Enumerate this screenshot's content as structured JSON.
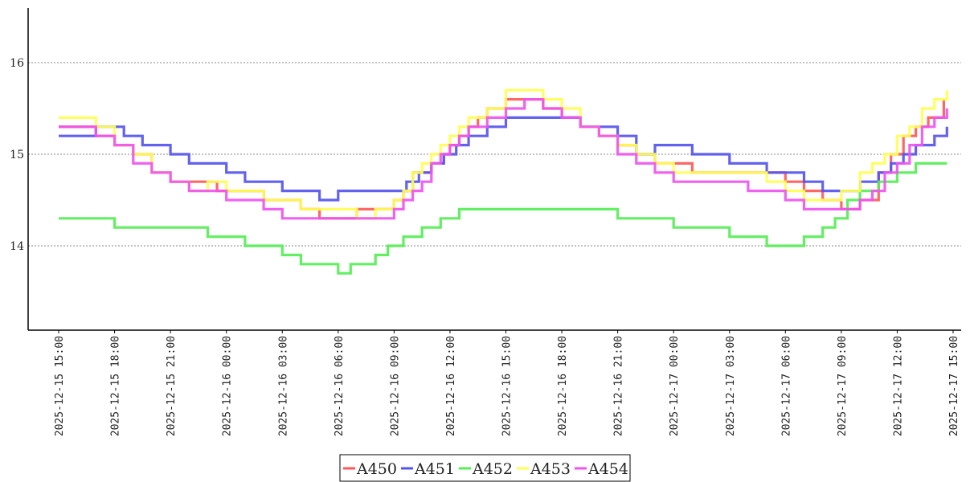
{
  "chart_data": {
    "type": "line",
    "title": "",
    "xlabel": "",
    "ylabel": "",
    "x_ticks": [
      "2025-12-15 15:00",
      "2025-12-15 18:00",
      "2025-12-15 21:00",
      "2025-12-16 00:00",
      "2025-12-16 03:00",
      "2025-12-16 06:00",
      "2025-12-16 09:00",
      "2025-12-16 12:00",
      "2025-12-16 15:00",
      "2025-12-16 18:00",
      "2025-12-16 21:00",
      "2025-12-17 00:00",
      "2025-12-17 03:00",
      "2025-12-17 06:00",
      "2025-12-17 09:00",
      "2025-12-17 12:00",
      "2025-12-17 15:00"
    ],
    "xlim": [
      "2025-12-15 14:30",
      "2025-12-17 15:10"
    ],
    "y_ticks": [
      14,
      15,
      16
    ],
    "ylim": [
      13.1,
      16.6
    ],
    "grid": "horizontal dotted",
    "legend_position": "bottom-center",
    "series": [
      {
        "name": "A450",
        "color": "#ff5a5a",
        "x": [
          "2025-12-15 15:00",
          "2025-12-15 16:00",
          "2025-12-15 17:00",
          "2025-12-15 18:00",
          "2025-12-15 19:00",
          "2025-12-15 20:00",
          "2025-12-15 21:00",
          "2025-12-15 22:00",
          "2025-12-15 23:30",
          "2025-12-16 01:00",
          "2025-12-16 02:00",
          "2025-12-16 03:00",
          "2025-12-16 04:00",
          "2025-12-16 05:00",
          "2025-12-16 06:00",
          "2025-12-16 07:00",
          "2025-12-16 08:00",
          "2025-12-16 09:00",
          "2025-12-16 09:30",
          "2025-12-16 10:00",
          "2025-12-16 11:00",
          "2025-12-16 11:40",
          "2025-12-16 12:00",
          "2025-12-16 12:30",
          "2025-12-16 13:00",
          "2025-12-16 13:30",
          "2025-12-16 14:00",
          "2025-12-16 15:00",
          "2025-12-16 16:00",
          "2025-12-16 17:00",
          "2025-12-16 18:00",
          "2025-12-16 19:00",
          "2025-12-16 20:00",
          "2025-12-16 21:00",
          "2025-12-16 22:00",
          "2025-12-16 23:00",
          "2025-12-17 00:00",
          "2025-12-17 01:00",
          "2025-12-17 03:00",
          "2025-12-17 04:00",
          "2025-12-17 05:00",
          "2025-12-17 06:00",
          "2025-12-17 07:00",
          "2025-12-17 08:00",
          "2025-12-17 09:00",
          "2025-12-17 10:00",
          "2025-12-17 11:00",
          "2025-12-17 11:40",
          "2025-12-17 12:20",
          "2025-12-17 13:00",
          "2025-12-17 13:40",
          "2025-12-17 14:30"
        ],
        "y": [
          15.3,
          15.3,
          15.2,
          15.1,
          15.0,
          14.8,
          14.7,
          14.7,
          14.6,
          14.6,
          14.5,
          14.5,
          14.4,
          14.3,
          14.3,
          14.4,
          14.4,
          14.5,
          14.6,
          14.8,
          14.9,
          15.0,
          15.1,
          15.2,
          15.3,
          15.4,
          15.5,
          15.6,
          15.6,
          15.5,
          15.4,
          15.3,
          15.2,
          15.1,
          15.0,
          14.9,
          14.9,
          14.8,
          14.8,
          14.8,
          14.8,
          14.7,
          14.6,
          14.5,
          14.4,
          14.5,
          14.8,
          15.0,
          15.2,
          15.3,
          15.4,
          15.6
        ]
      },
      {
        "name": "A451",
        "color": "#5555ee",
        "x": [
          "2025-12-15 15:00",
          "2025-12-15 16:00",
          "2025-12-15 17:00",
          "2025-12-15 18:30",
          "2025-12-15 19:30",
          "2025-12-15 21:00",
          "2025-12-15 22:00",
          "2025-12-16 00:00",
          "2025-12-16 01:00",
          "2025-12-16 02:00",
          "2025-12-16 03:00",
          "2025-12-16 04:00",
          "2025-12-16 05:00",
          "2025-12-16 06:00",
          "2025-12-16 07:00",
          "2025-12-16 08:00",
          "2025-12-16 09:00",
          "2025-12-16 09:40",
          "2025-12-16 10:20",
          "2025-12-16 11:00",
          "2025-12-16 11:40",
          "2025-12-16 12:20",
          "2025-12-16 13:00",
          "2025-12-16 14:00",
          "2025-12-16 15:00",
          "2025-12-16 16:00",
          "2025-12-16 17:00",
          "2025-12-16 18:00",
          "2025-12-16 19:00",
          "2025-12-16 20:00",
          "2025-12-16 21:00",
          "2025-12-16 22:00",
          "2025-12-16 23:00",
          "2025-12-17 00:00",
          "2025-12-17 01:00",
          "2025-12-17 02:00",
          "2025-12-17 03:00",
          "2025-12-17 04:00",
          "2025-12-17 05:00",
          "2025-12-17 06:00",
          "2025-12-17 07:00",
          "2025-12-17 08:00",
          "2025-12-17 09:00",
          "2025-12-17 10:00",
          "2025-12-17 11:00",
          "2025-12-17 11:40",
          "2025-12-17 12:20",
          "2025-12-17 13:00",
          "2025-12-17 14:00",
          "2025-12-17 14:40"
        ],
        "y": [
          15.2,
          15.2,
          15.3,
          15.2,
          15.1,
          15.0,
          14.9,
          14.8,
          14.7,
          14.7,
          14.6,
          14.6,
          14.5,
          14.6,
          14.6,
          14.6,
          14.6,
          14.7,
          14.8,
          14.9,
          15.0,
          15.1,
          15.2,
          15.3,
          15.4,
          15.4,
          15.4,
          15.4,
          15.3,
          15.3,
          15.2,
          15.0,
          15.1,
          15.1,
          15.0,
          15.0,
          14.9,
          14.9,
          14.8,
          14.8,
          14.7,
          14.6,
          14.6,
          14.7,
          14.8,
          14.9,
          15.0,
          15.1,
          15.2,
          15.3
        ]
      },
      {
        "name": "A452",
        "color": "#55ee55",
        "x": [
          "2025-12-15 15:00",
          "2025-12-15 17:00",
          "2025-12-15 18:00",
          "2025-12-15 20:00",
          "2025-12-15 22:00",
          "2025-12-15 23:00",
          "2025-12-16 00:00",
          "2025-12-16 01:00",
          "2025-12-16 02:00",
          "2025-12-16 03:00",
          "2025-12-16 04:00",
          "2025-12-16 05:00",
          "2025-12-16 06:00",
          "2025-12-16 06:40",
          "2025-12-16 07:20",
          "2025-12-16 08:00",
          "2025-12-16 08:40",
          "2025-12-16 09:30",
          "2025-12-16 10:30",
          "2025-12-16 11:30",
          "2025-12-16 12:30",
          "2025-12-16 14:00",
          "2025-12-16 16:00",
          "2025-12-16 18:00",
          "2025-12-16 20:00",
          "2025-12-16 21:00",
          "2025-12-16 22:00",
          "2025-12-17 00:00",
          "2025-12-17 02:00",
          "2025-12-17 03:00",
          "2025-12-17 04:00",
          "2025-12-17 05:00",
          "2025-12-17 06:00",
          "2025-12-17 06:30",
          "2025-12-17 07:00",
          "2025-12-17 08:00",
          "2025-12-17 08:40",
          "2025-12-17 09:20",
          "2025-12-17 10:00",
          "2025-12-17 11:00",
          "2025-12-17 12:00",
          "2025-12-17 13:00",
          "2025-12-17 14:00",
          "2025-12-17 14:40"
        ],
        "y": [
          14.3,
          14.3,
          14.2,
          14.2,
          14.2,
          14.1,
          14.1,
          14.0,
          14.0,
          13.9,
          13.8,
          13.8,
          13.7,
          13.8,
          13.8,
          13.9,
          14.0,
          14.1,
          14.2,
          14.3,
          14.4,
          14.4,
          14.4,
          14.4,
          14.4,
          14.3,
          14.3,
          14.2,
          14.2,
          14.1,
          14.1,
          14.0,
          14.0,
          14.0,
          14.1,
          14.2,
          14.3,
          14.5,
          14.6,
          14.7,
          14.8,
          14.9,
          14.9,
          14.9
        ]
      },
      {
        "name": "A453",
        "color": "#ffff55",
        "x": [
          "2025-12-15 15:00",
          "2025-12-15 16:00",
          "2025-12-15 17:00",
          "2025-12-15 18:00",
          "2025-12-15 19:00",
          "2025-12-15 20:00",
          "2025-12-15 21:00",
          "2025-12-15 22:00",
          "2025-12-15 23:00",
          "2025-12-16 00:00",
          "2025-12-16 01:00",
          "2025-12-16 02:00",
          "2025-12-16 03:00",
          "2025-12-16 04:00",
          "2025-12-16 05:00",
          "2025-12-16 06:00",
          "2025-12-16 07:00",
          "2025-12-16 08:00",
          "2025-12-16 09:00",
          "2025-12-16 09:30",
          "2025-12-16 10:00",
          "2025-12-16 10:30",
          "2025-12-16 11:00",
          "2025-12-16 11:30",
          "2025-12-16 12:00",
          "2025-12-16 12:30",
          "2025-12-16 13:00",
          "2025-12-16 14:00",
          "2025-12-16 15:00",
          "2025-12-16 16:00",
          "2025-12-16 17:00",
          "2025-12-16 18:00",
          "2025-12-16 19:00",
          "2025-12-16 20:00",
          "2025-12-16 21:00",
          "2025-12-16 22:00",
          "2025-12-16 23:00",
          "2025-12-17 00:00",
          "2025-12-17 02:00",
          "2025-12-17 04:00",
          "2025-12-17 05:00",
          "2025-12-17 06:00",
          "2025-12-17 07:00",
          "2025-12-17 08:00",
          "2025-12-17 09:00",
          "2025-12-17 10:00",
          "2025-12-17 10:40",
          "2025-12-17 11:20",
          "2025-12-17 12:00",
          "2025-12-17 12:40",
          "2025-12-17 13:20",
          "2025-12-17 14:00",
          "2025-12-17 14:40"
        ],
        "y": [
          15.4,
          15.4,
          15.3,
          15.1,
          15.0,
          14.8,
          14.7,
          14.6,
          14.7,
          14.6,
          14.6,
          14.5,
          14.5,
          14.4,
          14.4,
          14.4,
          14.3,
          14.4,
          14.5,
          14.6,
          14.8,
          14.9,
          15.0,
          15.1,
          15.2,
          15.3,
          15.4,
          15.5,
          15.7,
          15.7,
          15.6,
          15.5,
          15.3,
          15.2,
          15.1,
          15.0,
          14.9,
          14.8,
          14.8,
          14.8,
          14.7,
          14.6,
          14.5,
          14.5,
          14.6,
          14.8,
          14.9,
          15.0,
          15.2,
          15.3,
          15.5,
          15.6,
          15.7
        ]
      },
      {
        "name": "A454",
        "color": "#ee55ee",
        "x": [
          "2025-12-15 15:00",
          "2025-12-15 16:00",
          "2025-12-15 17:00",
          "2025-12-15 18:00",
          "2025-12-15 19:00",
          "2025-12-15 20:00",
          "2025-12-15 21:00",
          "2025-12-15 22:00",
          "2025-12-15 23:00",
          "2025-12-16 00:00",
          "2025-12-16 01:00",
          "2025-12-16 02:00",
          "2025-12-16 03:00",
          "2025-12-16 04:00",
          "2025-12-16 05:00",
          "2025-12-16 06:00",
          "2025-12-16 07:00",
          "2025-12-16 08:00",
          "2025-12-16 09:00",
          "2025-12-16 09:30",
          "2025-12-16 10:00",
          "2025-12-16 10:30",
          "2025-12-16 11:00",
          "2025-12-16 11:30",
          "2025-12-16 12:00",
          "2025-12-16 12:30",
          "2025-12-16 13:00",
          "2025-12-16 14:00",
          "2025-12-16 15:00",
          "2025-12-16 16:00",
          "2025-12-16 17:00",
          "2025-12-16 18:00",
          "2025-12-16 19:00",
          "2025-12-16 20:00",
          "2025-12-16 21:00",
          "2025-12-16 22:00",
          "2025-12-16 23:00",
          "2025-12-17 00:00",
          "2025-12-17 02:00",
          "2025-12-17 04:00",
          "2025-12-17 05:00",
          "2025-12-17 06:00",
          "2025-12-17 07:00",
          "2025-12-17 08:00",
          "2025-12-17 09:00",
          "2025-12-17 10:00",
          "2025-12-17 10:40",
          "2025-12-17 11:20",
          "2025-12-17 12:00",
          "2025-12-17 12:40",
          "2025-12-17 13:20",
          "2025-12-17 14:00",
          "2025-12-17 14:40"
        ],
        "y": [
          15.3,
          15.3,
          15.2,
          15.1,
          14.9,
          14.8,
          14.7,
          14.6,
          14.6,
          14.5,
          14.5,
          14.4,
          14.3,
          14.3,
          14.3,
          14.3,
          14.3,
          14.3,
          14.4,
          14.5,
          14.6,
          14.7,
          14.9,
          15.0,
          15.1,
          15.2,
          15.3,
          15.4,
          15.5,
          15.6,
          15.5,
          15.4,
          15.3,
          15.2,
          15.0,
          14.9,
          14.8,
          14.7,
          14.7,
          14.6,
          14.6,
          14.5,
          14.4,
          14.4,
          14.4,
          14.5,
          14.6,
          14.8,
          14.9,
          15.1,
          15.3,
          15.4,
          15.5
        ]
      }
    ]
  },
  "legend": {
    "items": [
      {
        "label": "A450",
        "color": "#ff5a5a"
      },
      {
        "label": "A451",
        "color": "#5555ee"
      },
      {
        "label": "A452",
        "color": "#55ee55"
      },
      {
        "label": "A453",
        "color": "#ffff55"
      },
      {
        "label": "A454",
        "color": "#ee55ee"
      }
    ]
  }
}
